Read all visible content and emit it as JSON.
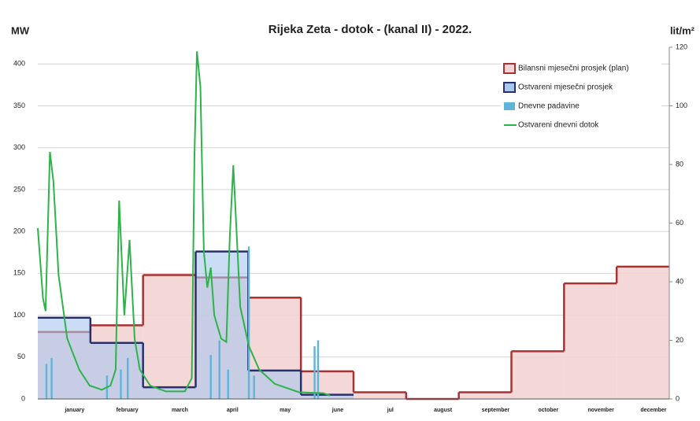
{
  "chart_data": {
    "type": "step",
    "title": "Rijeka Zeta - dotok - (kanal II) - 2022.",
    "y_label": "MW",
    "y2_label": "lit/m²",
    "categories": [
      "january",
      "february",
      "march",
      "april",
      "may",
      "june",
      "jul",
      "august",
      "september",
      "october",
      "november",
      "december"
    ],
    "ylim": [
      0,
      420
    ],
    "yticks": [
      0,
      50,
      100,
      150,
      200,
      250,
      300,
      350,
      400
    ],
    "y2lim": [
      0,
      120
    ],
    "y2ticks": [
      0,
      20,
      40,
      60,
      80,
      100,
      120
    ],
    "xlim": [
      0,
      365
    ],
    "grid": true,
    "legend": "upper right",
    "series": [
      {
        "name": "Bilansni mjesečni prosjek (plan)",
        "type": "step",
        "color": "#a83232",
        "fill": "#f3d3d3",
        "values": [
          80,
          88,
          148,
          145,
          121,
          33,
          8,
          0,
          8,
          57,
          138,
          158
        ]
      },
      {
        "name": "Ostvareni mjesečni prosjek",
        "type": "step",
        "color": "#27306e",
        "fill": "#a9c6ec",
        "values": [
          97,
          67,
          14,
          176,
          34,
          5,
          null,
          null,
          null,
          null,
          null,
          null
        ]
      },
      {
        "name": "Dnevne padavine",
        "type": "bar",
        "color": "#5fb4d8",
        "axis": "y2",
        "x": [
          5,
          8,
          40,
          48,
          52,
          100,
          105,
          110,
          122,
          125,
          160,
          162
        ],
        "values": [
          12,
          14,
          8,
          10,
          14,
          15,
          20,
          10,
          52,
          8,
          18,
          20
        ]
      },
      {
        "name": "Ostvareni dnevni dotok",
        "type": "line",
        "color": "#2db34a",
        "x": [
          0,
          3,
          4.5,
          7,
          9,
          12,
          17,
          24,
          30,
          37,
          42,
          45,
          47,
          50,
          53,
          56,
          59,
          65,
          74,
          85,
          89,
          90.5,
          92,
          94,
          96,
          98,
          100,
          102,
          106,
          109,
          111,
          113,
          115,
          117,
          122,
          128,
          137,
          151,
          165,
          169
        ],
        "values": [
          204,
          120,
          105,
          295,
          260,
          148,
          72,
          35,
          16,
          11,
          16,
          35,
          237,
          100,
          190,
          72,
          35,
          16,
          9,
          9,
          25,
          288,
          415,
          373,
          176,
          133,
          157,
          100,
          72,
          68,
          195,
          279,
          195,
          110,
          63,
          35,
          18,
          8,
          7,
          4
        ]
      }
    ]
  }
}
